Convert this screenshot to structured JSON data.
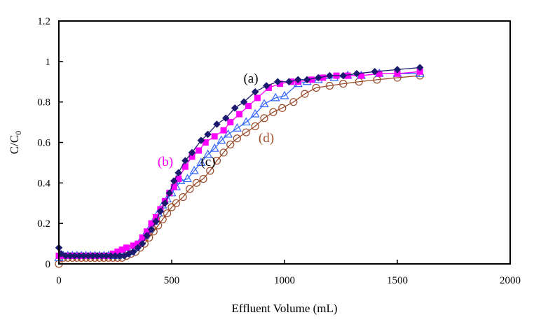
{
  "chart_data": {
    "type": "line",
    "title": "",
    "xlabel": "Effluent Volume (mL)",
    "ylabel": "C/C0",
    "ylabel_main": "C/C",
    "ylabel_sub": "0",
    "xlim": [
      0,
      2000
    ],
    "ylim": [
      0,
      1.2
    ],
    "x_ticks": [
      0,
      500,
      1000,
      1500,
      2000
    ],
    "x_tick_labels": [
      "0",
      "500",
      "1000",
      "1500",
      "2000"
    ],
    "y_ticks": [
      0,
      0.2,
      0.4,
      0.6,
      0.8,
      1.0,
      1.2
    ],
    "y_tick_labels": [
      "0",
      "0.2",
      "0.4",
      "0.6",
      "0.8",
      "1",
      "1.2"
    ],
    "grid": false,
    "legend": "none",
    "series": [
      {
        "label": "(a)",
        "color": "#1a1a6e",
        "label_color": "#000000",
        "marker": "diamond-filled",
        "points": [
          [
            0,
            0.08
          ],
          [
            10,
            0.05
          ],
          [
            30,
            0.04
          ],
          [
            50,
            0.04
          ],
          [
            70,
            0.04
          ],
          [
            90,
            0.04
          ],
          [
            110,
            0.04
          ],
          [
            130,
            0.04
          ],
          [
            150,
            0.04
          ],
          [
            170,
            0.04
          ],
          [
            190,
            0.04
          ],
          [
            210,
            0.04
          ],
          [
            230,
            0.04
          ],
          [
            250,
            0.04
          ],
          [
            270,
            0.04
          ],
          [
            290,
            0.04
          ],
          [
            310,
            0.05
          ],
          [
            330,
            0.06
          ],
          [
            350,
            0.08
          ],
          [
            370,
            0.1
          ],
          [
            390,
            0.14
          ],
          [
            410,
            0.17
          ],
          [
            430,
            0.21
          ],
          [
            450,
            0.26
          ],
          [
            470,
            0.3
          ],
          [
            490,
            0.35
          ],
          [
            510,
            0.41
          ],
          [
            530,
            0.45
          ],
          [
            560,
            0.51
          ],
          [
            590,
            0.55
          ],
          [
            630,
            0.61
          ],
          [
            660,
            0.64
          ],
          [
            700,
            0.69
          ],
          [
            740,
            0.72
          ],
          [
            780,
            0.77
          ],
          [
            820,
            0.8
          ],
          [
            870,
            0.85
          ],
          [
            920,
            0.88
          ],
          [
            970,
            0.9
          ],
          [
            1020,
            0.9
          ],
          [
            1060,
            0.91
          ],
          [
            1100,
            0.91
          ],
          [
            1150,
            0.92
          ],
          [
            1200,
            0.93
          ],
          [
            1260,
            0.93
          ],
          [
            1320,
            0.94
          ],
          [
            1400,
            0.95
          ],
          [
            1500,
            0.96
          ],
          [
            1600,
            0.97
          ]
        ]
      },
      {
        "label": "(b)",
        "color": "#ff00ff",
        "label_color": "#ff00ff",
        "marker": "square-filled",
        "points": [
          [
            0,
            0.04
          ],
          [
            20,
            0.04
          ],
          [
            40,
            0.04
          ],
          [
            60,
            0.04
          ],
          [
            80,
            0.04
          ],
          [
            100,
            0.04
          ],
          [
            120,
            0.04
          ],
          [
            140,
            0.04
          ],
          [
            160,
            0.04
          ],
          [
            180,
            0.04
          ],
          [
            200,
            0.04
          ],
          [
            220,
            0.04
          ],
          [
            240,
            0.05
          ],
          [
            260,
            0.06
          ],
          [
            280,
            0.07
          ],
          [
            300,
            0.08
          ],
          [
            330,
            0.09
          ],
          [
            350,
            0.1
          ],
          [
            370,
            0.13
          ],
          [
            390,
            0.16
          ],
          [
            410,
            0.2
          ],
          [
            430,
            0.23
          ],
          [
            450,
            0.27
          ],
          [
            470,
            0.31
          ],
          [
            490,
            0.35
          ],
          [
            510,
            0.38
          ],
          [
            530,
            0.42
          ],
          [
            560,
            0.48
          ],
          [
            590,
            0.53
          ],
          [
            620,
            0.56
          ],
          [
            650,
            0.6
          ],
          [
            690,
            0.63
          ],
          [
            730,
            0.66
          ],
          [
            760,
            0.7
          ],
          [
            800,
            0.74
          ],
          [
            840,
            0.78
          ],
          [
            880,
            0.82
          ],
          [
            930,
            0.87
          ],
          [
            980,
            0.89
          ],
          [
            1030,
            0.9
          ],
          [
            1060,
            0.9
          ],
          [
            1120,
            0.91
          ],
          [
            1170,
            0.92
          ],
          [
            1230,
            0.93
          ],
          [
            1280,
            0.93
          ],
          [
            1340,
            0.93
          ],
          [
            1420,
            0.94
          ],
          [
            1500,
            0.94
          ],
          [
            1600,
            0.95
          ]
        ]
      },
      {
        "label": "(c)",
        "color": "#3366ff",
        "label_color": "#000000",
        "marker": "triangle-open",
        "points": [
          [
            0,
            0.03
          ],
          [
            20,
            0.04
          ],
          [
            40,
            0.04
          ],
          [
            60,
            0.04
          ],
          [
            80,
            0.04
          ],
          [
            100,
            0.04
          ],
          [
            120,
            0.04
          ],
          [
            140,
            0.04
          ],
          [
            160,
            0.04
          ],
          [
            180,
            0.04
          ],
          [
            200,
            0.04
          ],
          [
            220,
            0.04
          ],
          [
            240,
            0.04
          ],
          [
            260,
            0.04
          ],
          [
            280,
            0.05
          ],
          [
            300,
            0.05
          ],
          [
            320,
            0.06
          ],
          [
            340,
            0.08
          ],
          [
            360,
            0.11
          ],
          [
            380,
            0.14
          ],
          [
            400,
            0.17
          ],
          [
            420,
            0.21
          ],
          [
            440,
            0.25
          ],
          [
            460,
            0.29
          ],
          [
            480,
            0.32
          ],
          [
            500,
            0.35
          ],
          [
            520,
            0.38
          ],
          [
            540,
            0.41
          ],
          [
            570,
            0.42
          ],
          [
            600,
            0.46
          ],
          [
            630,
            0.5
          ],
          [
            660,
            0.54
          ],
          [
            690,
            0.57
          ],
          [
            720,
            0.61
          ],
          [
            750,
            0.64
          ],
          [
            790,
            0.67
          ],
          [
            830,
            0.7
          ],
          [
            870,
            0.74
          ],
          [
            910,
            0.79
          ],
          [
            960,
            0.82
          ],
          [
            1000,
            0.83
          ],
          [
            1060,
            0.89
          ],
          [
            1100,
            0.9
          ],
          [
            1150,
            0.91
          ],
          [
            1220,
            0.92
          ],
          [
            1280,
            0.93
          ],
          [
            1340,
            0.93
          ],
          [
            1420,
            0.94
          ],
          [
            1500,
            0.94
          ],
          [
            1600,
            0.94
          ]
        ]
      },
      {
        "label": "(d)",
        "color": "#9a4a2a",
        "label_color": "#a0522d",
        "marker": "circle-open",
        "points": [
          [
            0,
            0.0
          ],
          [
            20,
            0.03
          ],
          [
            40,
            0.03
          ],
          [
            60,
            0.03
          ],
          [
            80,
            0.03
          ],
          [
            100,
            0.03
          ],
          [
            120,
            0.03
          ],
          [
            140,
            0.03
          ],
          [
            160,
            0.03
          ],
          [
            180,
            0.03
          ],
          [
            200,
            0.03
          ],
          [
            220,
            0.03
          ],
          [
            240,
            0.03
          ],
          [
            260,
            0.03
          ],
          [
            280,
            0.03
          ],
          [
            300,
            0.04
          ],
          [
            320,
            0.05
          ],
          [
            340,
            0.06
          ],
          [
            360,
            0.08
          ],
          [
            380,
            0.1
          ],
          [
            400,
            0.13
          ],
          [
            420,
            0.16
          ],
          [
            440,
            0.19
          ],
          [
            460,
            0.22
          ],
          [
            480,
            0.25
          ],
          [
            500,
            0.28
          ],
          [
            520,
            0.3
          ],
          [
            550,
            0.33
          ],
          [
            580,
            0.37
          ],
          [
            610,
            0.4
          ],
          [
            640,
            0.42
          ],
          [
            670,
            0.46
          ],
          [
            700,
            0.51
          ],
          [
            730,
            0.55
          ],
          [
            760,
            0.59
          ],
          [
            790,
            0.62
          ],
          [
            830,
            0.65
          ],
          [
            870,
            0.68
          ],
          [
            910,
            0.72
          ],
          [
            950,
            0.75
          ],
          [
            990,
            0.77
          ],
          [
            1040,
            0.8
          ],
          [
            1090,
            0.84
          ],
          [
            1140,
            0.87
          ],
          [
            1200,
            0.88
          ],
          [
            1260,
            0.89
          ],
          [
            1330,
            0.9
          ],
          [
            1410,
            0.91
          ],
          [
            1500,
            0.92
          ],
          [
            1600,
            0.93
          ]
        ]
      }
    ]
  }
}
